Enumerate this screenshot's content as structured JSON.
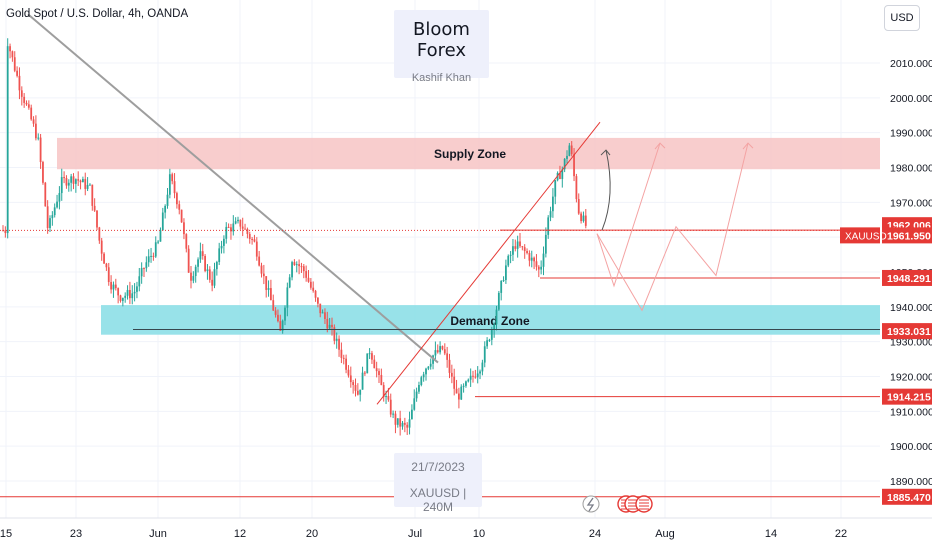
{
  "header": {
    "symbol_title": "Gold Spot / U.S. Dollar, 4h, OANDA",
    "currency_button": "USD"
  },
  "watermark": {
    "title": "Bloom Forex",
    "author": "Kashif Khan",
    "date": "21/7/2023",
    "symbol_tf": "XAUUSD | 240M"
  },
  "zones": {
    "supply_label": "Supply Zone",
    "demand_label": "Demand Zone"
  },
  "colors": {
    "supply_fill": "#f7c4c4",
    "demand_fill": "#86dde5",
    "level_line": "#e53935",
    "bull": "#26a69a",
    "bear": "#ef5350",
    "trendline_gray": "#9e9e9e"
  },
  "chart_data": {
    "type": "candlestick",
    "title": "Gold Spot / U.S. Dollar, 4h, OANDA",
    "y_range": [
      1883,
      2024
    ],
    "y_ticks": [
      "2010.000",
      "2000.000",
      "1990.000",
      "1980.000",
      "1970.000",
      "1960.000",
      "1950.000",
      "1940.000",
      "1930.000",
      "1920.000",
      "1910.000",
      "1900.000",
      "1890.000"
    ],
    "x_ticks": [
      "15",
      "23",
      "Jun",
      "12",
      "20",
      "Jul",
      "10",
      "24",
      "Aug",
      "14",
      "22"
    ],
    "price_labels": [
      {
        "label": "1962.006",
        "value": 1962.006,
        "style": "red"
      },
      {
        "label": "1961.950",
        "value": 1961.95,
        "style": "red",
        "tag": "XAUUSD"
      },
      {
        "label": "1948.291",
        "value": 1948.291,
        "style": "red"
      },
      {
        "label": "1933.031",
        "value": 1933.031,
        "style": "red"
      },
      {
        "label": "1914.215",
        "value": 1914.215,
        "style": "red"
      },
      {
        "label": "1885.470",
        "value": 1885.47,
        "style": "red"
      }
    ],
    "supply_zone": [
      1979.5,
      1988.5
    ],
    "demand_zone": [
      1932.0,
      1940.5
    ],
    "path_keypoints": [
      [
        2018,
        6
      ],
      [
        2003,
        20
      ],
      [
        1988,
        38
      ],
      [
        1962,
        48
      ],
      [
        1976,
        62
      ],
      [
        1977,
        75
      ],
      [
        1974,
        90
      ],
      [
        1958,
        100
      ],
      [
        1947,
        110
      ],
      [
        1943,
        120
      ],
      [
        1944,
        134
      ],
      [
        1952,
        145
      ],
      [
        1958,
        158
      ],
      [
        1977,
        170
      ],
      [
        1968,
        180
      ],
      [
        1948,
        190
      ],
      [
        1955,
        200
      ],
      [
        1947,
        212
      ],
      [
        1962,
        225
      ],
      [
        1964,
        240
      ],
      [
        1958,
        255
      ],
      [
        1947,
        265
      ],
      [
        1938,
        275
      ],
      [
        1932,
        280
      ],
      [
        1954,
        292
      ],
      [
        1950,
        305
      ],
      [
        1940,
        318
      ],
      [
        1934,
        330
      ],
      [
        1924,
        345
      ],
      [
        1915,
        358
      ],
      [
        1928,
        370
      ],
      [
        1918,
        380
      ],
      [
        1907,
        395
      ],
      [
        1905,
        408
      ],
      [
        1920,
        420
      ],
      [
        1926,
        433
      ],
      [
        1928,
        443
      ],
      [
        1914,
        457
      ],
      [
        1918,
        468
      ],
      [
        1923,
        480
      ],
      [
        1935,
        493
      ],
      [
        1951,
        505
      ],
      [
        1958,
        515
      ],
      [
        1955,
        528
      ],
      [
        1950,
        540
      ],
      [
        1965,
        548
      ],
      [
        1976,
        556
      ],
      [
        1980,
        563
      ],
      [
        1987,
        570
      ],
      [
        1968,
        578
      ],
      [
        1962,
        588
      ]
    ],
    "projections": [
      {
        "name": "path-1",
        "points": [
          [
            1961,
            597
          ],
          [
            1946,
            614
          ],
          [
            1987,
            660
          ]
        ]
      },
      {
        "name": "path-2",
        "points": [
          [
            1961,
            597
          ],
          [
            1939,
            642
          ],
          [
            1963,
            676
          ],
          [
            1949,
            716
          ],
          [
            1987,
            748
          ]
        ]
      }
    ],
    "curved_arrow": [
      [
        1962,
        602
      ],
      [
        1985,
        606
      ]
    ],
    "up_channel_line": [
      [
        1912,
        377
      ],
      [
        1993,
        600
      ]
    ],
    "down_trendline": [
      [
        2024,
        28
      ],
      [
        1924,
        438
      ]
    ],
    "demand_base_line": {
      "value": 1933.5,
      "x_range": [
        133,
        880
      ]
    }
  }
}
